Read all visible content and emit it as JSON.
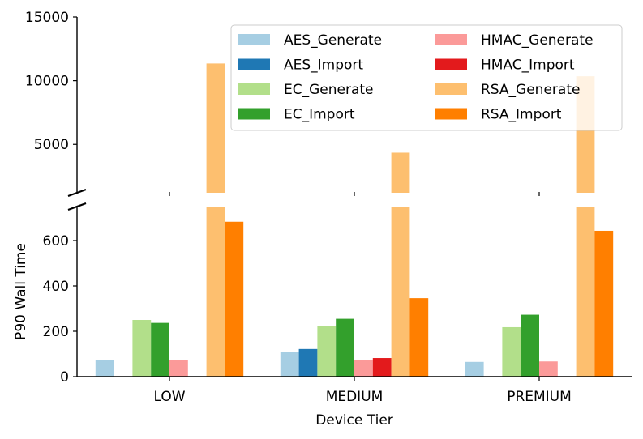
{
  "chart_data": {
    "type": "bar",
    "xlabel": "Device Tier",
    "ylabel": "P90 Wall Time",
    "categories": [
      "LOW",
      "MEDIUM",
      "PREMIUM"
    ],
    "broken_y_axis": true,
    "upper_ylim": [
      1200,
      15000
    ],
    "upper_yticks": [
      "5000",
      "10000",
      "15000"
    ],
    "lower_ylim": [
      0,
      750
    ],
    "lower_yticks": [
      "0",
      "200",
      "400",
      "600"
    ],
    "legend_position": "top-right",
    "legend_columns": 2,
    "series": [
      {
        "name": "AES_Generate",
        "color": "#a6cee3",
        "values": [
          75,
          108,
          65
        ]
      },
      {
        "name": "AES_Import",
        "color": "#1f78b4",
        "values": [
          null,
          122,
          null
        ]
      },
      {
        "name": "EC_Generate",
        "color": "#b2df8a",
        "values": [
          250,
          222,
          218
        ]
      },
      {
        "name": "EC_Import",
        "color": "#33a02c",
        "values": [
          237,
          255,
          273
        ]
      },
      {
        "name": "HMAC_Generate",
        "color": "#fb9a99",
        "values": [
          75,
          75,
          67
        ]
      },
      {
        "name": "HMAC_Import",
        "color": "#e31a1c",
        "values": [
          null,
          82,
          null
        ]
      },
      {
        "name": "RSA_Generate",
        "color": "#fdbf6f",
        "values": [
          11350,
          4350,
          10350
        ]
      },
      {
        "name": "RSA_Import",
        "color": "#ff7f00",
        "values": [
          683,
          346,
          643
        ]
      }
    ]
  }
}
